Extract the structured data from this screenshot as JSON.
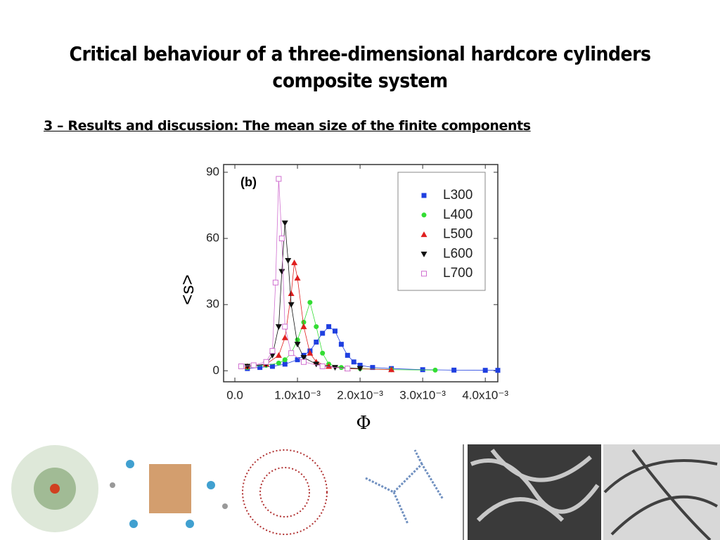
{
  "header": {
    "title": "Critical behaviour of a three-dimensional hardcore cylinders composite system",
    "subtitle": "3 – Results and discussion: The mean size of the finite components"
  },
  "chart_data": {
    "type": "scatter",
    "panel_label": "(b)",
    "xlabel": "Φ",
    "ylabel": "<s>",
    "xlim": [
      -0.00018,
      0.0042
    ],
    "ylim": [
      -5,
      93.5
    ],
    "xticks": [
      {
        "value": 0,
        "label": "0.0"
      },
      {
        "value": 0.001,
        "label": "1.0x10⁻³"
      },
      {
        "value": 0.002,
        "label": "2.0x10⁻³"
      },
      {
        "value": 0.003,
        "label": "3.0x10⁻³"
      },
      {
        "value": 0.004,
        "label": "4.0x10⁻³"
      }
    ],
    "yticks": [
      0,
      30,
      60,
      90
    ],
    "legend": "upper right",
    "series": [
      {
        "name": "L300",
        "color": "#1f3fe0",
        "marker": "square",
        "x": [
          0.0002,
          0.0004,
          0.0006,
          0.0008,
          0.001,
          0.0011,
          0.0012,
          0.0013,
          0.0014,
          0.0015,
          0.0016,
          0.0017,
          0.0018,
          0.0019,
          0.002,
          0.0022,
          0.0025,
          0.003,
          0.0035,
          0.004,
          0.0042
        ],
        "values": [
          1,
          1.5,
          2,
          3,
          5,
          7,
          9,
          13,
          17,
          20,
          18,
          12,
          7,
          4,
          2.5,
          1.5,
          1,
          0.5,
          0.3,
          0.2,
          0.2
        ]
      },
      {
        "name": "L400",
        "color": "#33dd33",
        "marker": "circle",
        "x": [
          0.0002,
          0.0005,
          0.0007,
          0.0008,
          0.0009,
          0.001,
          0.0011,
          0.0012,
          0.0013,
          0.0014,
          0.0015,
          0.0017,
          0.002,
          0.0025,
          0.0032
        ],
        "values": [
          1.5,
          2.5,
          3.5,
          5,
          8,
          14,
          22,
          31,
          20,
          8,
          3,
          1.5,
          1,
          0.5,
          0.3
        ]
      },
      {
        "name": "L500",
        "color": "#e01f1f",
        "marker": "triangle-up",
        "x": [
          0.0002,
          0.0005,
          0.0007,
          0.0008,
          0.0009,
          0.00095,
          0.001,
          0.0011,
          0.0012,
          0.0013,
          0.0015,
          0.0018,
          0.0025
        ],
        "values": [
          2,
          3,
          7,
          15,
          35,
          49,
          42,
          20,
          8,
          4,
          2,
          1,
          0.5
        ]
      },
      {
        "name": "L600",
        "color": "#111111",
        "marker": "triangle-down",
        "x": [
          0.0002,
          0.0005,
          0.0006,
          0.0007,
          0.00075,
          0.0008,
          0.00085,
          0.0009,
          0.001,
          0.0011,
          0.0013,
          0.0016,
          0.002
        ],
        "values": [
          2,
          3,
          7,
          20,
          45,
          67,
          50,
          30,
          12,
          6,
          3,
          1.5,
          1
        ]
      },
      {
        "name": "L700",
        "color": "#d070d0",
        "marker": "open-square",
        "x": [
          0.0001,
          0.0003,
          0.0005,
          0.0006,
          0.00065,
          0.0007,
          0.00075,
          0.0008,
          0.0009,
          0.0011,
          0.0014,
          0.0018
        ],
        "values": [
          2,
          2.5,
          4,
          9,
          40,
          87,
          60,
          20,
          8,
          4,
          2,
          1
        ]
      }
    ]
  }
}
